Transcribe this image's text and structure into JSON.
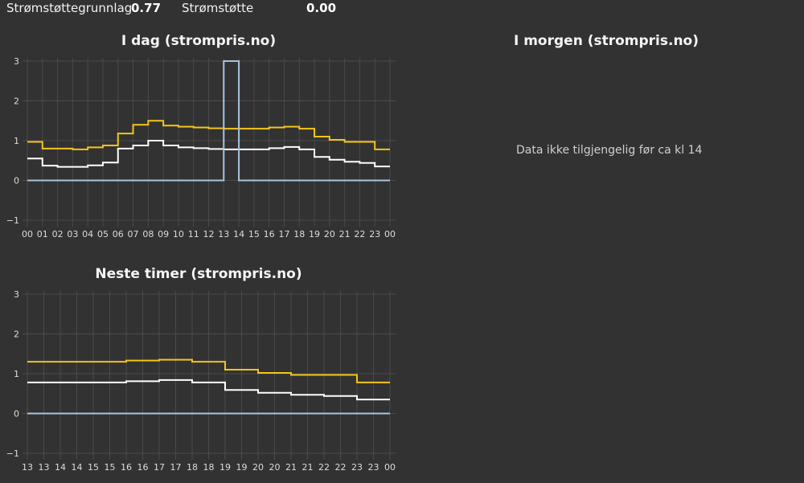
{
  "summary": {
    "grunnlag_label": "Strømstøttegrunnlag",
    "grunnlag_value": "0.77",
    "stotte_label": "Strømstøtte",
    "stotte_value": "0.00"
  },
  "tomorrow": {
    "title": "I morgen (strompris.no)",
    "notice": "Data ikke tilgjengelig før ca kl 14"
  },
  "chart_data": [
    {
      "type": "line",
      "title": "I dag (strompris.no)",
      "x_tick_labels": [
        "00",
        "01",
        "02",
        "03",
        "04",
        "05",
        "06",
        "07",
        "08",
        "09",
        "10",
        "11",
        "12",
        "13",
        "14",
        "15",
        "16",
        "17",
        "18",
        "19",
        "20",
        "21",
        "22",
        "23",
        "00"
      ],
      "y_ticks": [
        -1,
        0,
        1,
        2,
        3
      ],
      "ylim": [
        -1,
        3
      ],
      "step": true,
      "grid": true,
      "series": [
        {
          "color": "#f5c518",
          "values": [
            0.97,
            0.8,
            0.8,
            0.78,
            0.83,
            0.88,
            1.18,
            1.4,
            1.5,
            1.38,
            1.35,
            1.33,
            1.31,
            1.3,
            1.3,
            1.3,
            1.33,
            1.35,
            1.3,
            1.1,
            1.02,
            0.97,
            0.97,
            0.78
          ]
        },
        {
          "color": "#ffffff",
          "values": [
            0.55,
            0.37,
            0.34,
            0.34,
            0.38,
            0.45,
            0.8,
            0.88,
            1.0,
            0.88,
            0.83,
            0.81,
            0.79,
            0.78,
            0.78,
            0.78,
            0.81,
            0.84,
            0.78,
            0.59,
            0.52,
            0.47,
            0.44,
            0.35
          ]
        },
        {
          "color": "#a8c4e0",
          "values": [
            0,
            0,
            0,
            0,
            0,
            0,
            0,
            0,
            0,
            0,
            0,
            0,
            0,
            3,
            0,
            0,
            0,
            0,
            0,
            0,
            0,
            0,
            0,
            0
          ]
        }
      ]
    },
    {
      "type": "line",
      "title": "Neste timer (strompris.no)",
      "x_tick_labels": [
        "13",
        "13",
        "14",
        "14",
        "15",
        "15",
        "16",
        "16",
        "17",
        "17",
        "18",
        "18",
        "19",
        "19",
        "20",
        "20",
        "21",
        "21",
        "22",
        "22",
        "23",
        "23",
        "00"
      ],
      "y_ticks": [
        -1,
        0,
        1,
        2,
        3
      ],
      "ylim": [
        -1,
        3
      ],
      "step": true,
      "grid": true,
      "series": [
        {
          "color": "#f5c518",
          "values": [
            1.3,
            1.3,
            1.3,
            1.3,
            1.3,
            1.3,
            1.33,
            1.33,
            1.35,
            1.35,
            1.3,
            1.3,
            1.1,
            1.1,
            1.02,
            1.02,
            0.97,
            0.97,
            0.97,
            0.97,
            0.78,
            0.78
          ]
        },
        {
          "color": "#ffffff",
          "values": [
            0.78,
            0.78,
            0.78,
            0.78,
            0.78,
            0.78,
            0.81,
            0.81,
            0.84,
            0.84,
            0.78,
            0.78,
            0.59,
            0.59,
            0.52,
            0.52,
            0.47,
            0.47,
            0.44,
            0.44,
            0.35,
            0.35
          ]
        },
        {
          "color": "#a8c4e0",
          "values": [
            0,
            0,
            0,
            0,
            0,
            0,
            0,
            0,
            0,
            0,
            0,
            0,
            0,
            0,
            0,
            0,
            0,
            0,
            0,
            0,
            0,
            0
          ]
        }
      ]
    }
  ]
}
